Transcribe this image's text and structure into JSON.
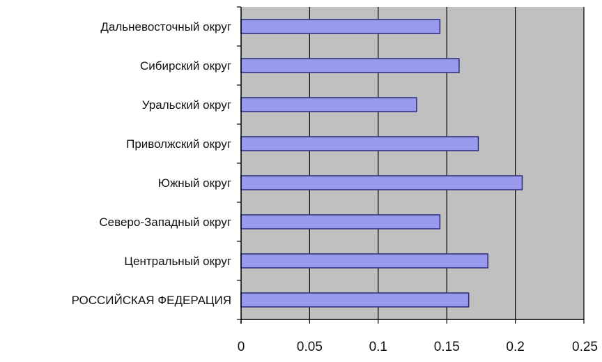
{
  "chart_data": {
    "type": "bar",
    "orientation": "horizontal",
    "title": "",
    "xlabel": "",
    "ylabel": "",
    "categories": [
      "Дальневосточный округ",
      "Сибирский округ",
      "Уральский округ",
      "Приволжский округ",
      "Южный округ",
      "Северо-Западный округ",
      "Центральный округ",
      "РОССИЙСКАЯ ФЕДЕРАЦИЯ"
    ],
    "values": [
      0.145,
      0.159,
      0.128,
      0.173,
      0.205,
      0.145,
      0.18,
      0.166
    ],
    "xlim": [
      0,
      0.25
    ],
    "xticks": [
      0,
      0.05,
      0.1,
      0.15,
      0.2,
      0.25
    ],
    "xtick_labels": [
      "0",
      "0.05",
      "0.1",
      "0.15",
      "0.2",
      "0.25"
    ],
    "grid": "vertical",
    "legend": "none",
    "colors": {
      "bar_fill": "#9999ee",
      "bar_stroke": "#2a2a7a",
      "plot_bg": "#c0c0c0",
      "grid": "#000000",
      "axis": "#000000"
    }
  }
}
